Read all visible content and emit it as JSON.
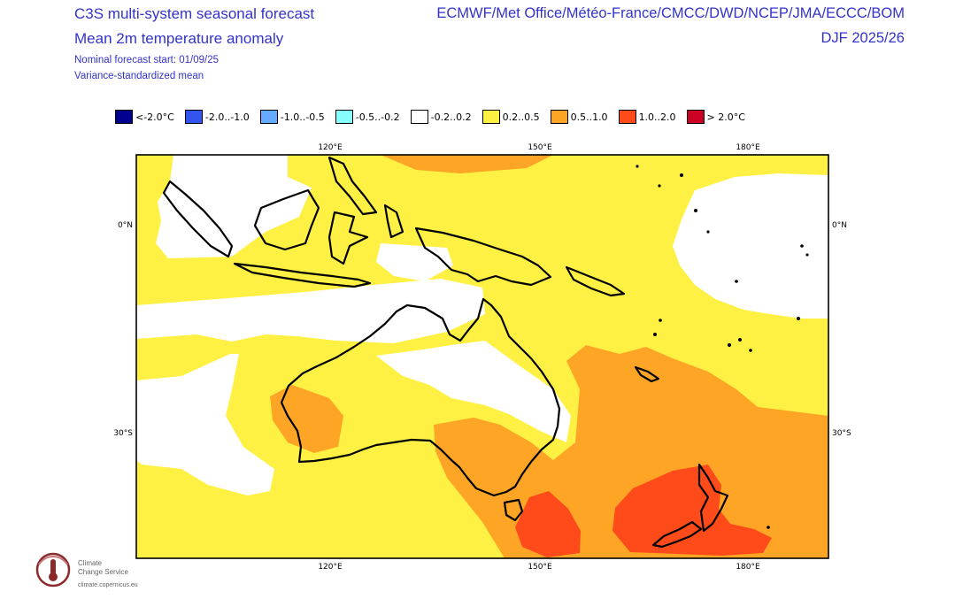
{
  "header": {
    "title_line1": "C3S multi-system seasonal forecast",
    "title_line2": "Mean 2m temperature anomaly",
    "start_note": "Nominal forecast start: 01/09/25",
    "method_note": "Variance-standardized mean",
    "systems": "ECMWF/Met Office/Météo-France/CMCC/DWD/NCEP/JMA/ECCC/BOM",
    "season": "DJF 2025/26"
  },
  "legend": [
    {
      "label": "<-2.0°C",
      "color": "#000090"
    },
    {
      "label": "-2.0..-1.0",
      "color": "#3355ee"
    },
    {
      "label": "-1.0..-0.5",
      "color": "#66aaff"
    },
    {
      "label": "-0.5..-0.2",
      "color": "#88ffff"
    },
    {
      "label": "-0.2..0.2",
      "color": "#ffffff"
    },
    {
      "label": "0.2..0.5",
      "color": "#fff044"
    },
    {
      "label": "0.5..1.0",
      "color": "#ffa526"
    },
    {
      "label": "1.0..2.0",
      "color": "#ff4a1a"
    },
    {
      "label": "> 2.0°C",
      "color": "#cc0022"
    }
  ],
  "axes": {
    "lon_ticks": [
      "120°E",
      "150°E",
      "180°E"
    ],
    "lat_ticks": [
      "0°N",
      "30°S"
    ]
  },
  "logo": {
    "line1": "Climate",
    "line2": "Change Service",
    "url": "climate.copernicus.eu",
    "icon": "thermometer-logo-icon"
  }
}
